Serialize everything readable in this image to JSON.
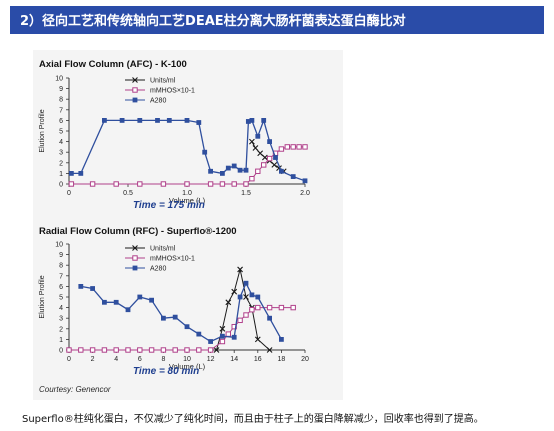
{
  "header": {
    "title": "2）径向工艺和传统轴向工艺DEAE柱分离大肠杆菌表达蛋白酶比对"
  },
  "figure": {
    "credit": "Courtesy: Genencor"
  },
  "caption": "Superflo®柱纯化蛋白，不仅减少了纯化时间，而且由于柱子上的蛋白降解减少，回收率也得到了提高。",
  "colors": {
    "header_bg": "#2a4ca8",
    "units": "#1a1a1a",
    "mmhos": "#b0408a",
    "a280": "#2f4f9e"
  },
  "chart_data": [
    {
      "type": "line",
      "title": "Axial Flow Column (AFC) - K-100",
      "xlabel": "Volume (L)",
      "ylabel": "Elution Profile",
      "xlim": [
        0,
        2.0
      ],
      "ylim": [
        0,
        10
      ],
      "xticks": [
        "0",
        "0.5",
        "1.0",
        "1.5",
        "2.0"
      ],
      "yticks": [
        "0",
        "1",
        "2",
        "3",
        "4",
        "5",
        "6",
        "7",
        "8",
        "9",
        "10"
      ],
      "time_label": "Time = 175 min",
      "legend": [
        "Units/ml",
        "mMHOS×10-1",
        "A280"
      ],
      "legend_position": "top",
      "series": [
        {
          "name": "Units/ml",
          "marker": "x",
          "x": [
            1.55,
            1.58,
            1.62,
            1.66,
            1.7,
            1.74,
            1.78,
            1.82
          ],
          "y": [
            4.0,
            3.4,
            2.9,
            2.5,
            2.2,
            1.8,
            1.5,
            1.2
          ]
        },
        {
          "name": "mMHOS×10-1",
          "marker": "square-open",
          "x": [
            0.02,
            0.2,
            0.4,
            0.6,
            0.8,
            1.0,
            1.2,
            1.3,
            1.4,
            1.5,
            1.55,
            1.6,
            1.65,
            1.7,
            1.75,
            1.8,
            1.85,
            1.9,
            1.95,
            2.0
          ],
          "y": [
            0,
            0,
            0,
            0,
            0,
            0,
            0,
            0,
            0,
            0,
            0.5,
            1.2,
            1.8,
            2.4,
            2.9,
            3.3,
            3.5,
            3.5,
            3.5,
            3.5
          ]
        },
        {
          "name": "A280",
          "marker": "square-filled",
          "x": [
            0.02,
            0.1,
            0.3,
            0.45,
            0.6,
            0.75,
            0.85,
            1.0,
            1.1,
            1.15,
            1.2,
            1.3,
            1.35,
            1.4,
            1.45,
            1.5,
            1.52,
            1.55,
            1.6,
            1.65,
            1.7,
            1.75,
            1.8,
            1.9,
            2.0
          ],
          "y": [
            1.0,
            1.0,
            6.0,
            6.0,
            6.0,
            6.0,
            6.0,
            6.0,
            5.8,
            3.0,
            1.2,
            1.0,
            1.5,
            1.7,
            1.3,
            1.3,
            5.9,
            6.0,
            4.5,
            6.0,
            4.0,
            2.5,
            1.2,
            0.7,
            0.3
          ]
        }
      ]
    },
    {
      "type": "line",
      "title": "Radial Flow Column (RFC) - Superflo®-1200",
      "xlabel": "Volume (L)",
      "ylabel": "Elution Profile",
      "xlim": [
        0,
        20
      ],
      "ylim": [
        0,
        10
      ],
      "xticks": [
        "0",
        "2",
        "4",
        "6",
        "8",
        "10",
        "12",
        "14",
        "16",
        "18",
        "20"
      ],
      "yticks": [
        "0",
        "1",
        "2",
        "3",
        "4",
        "5",
        "6",
        "7",
        "8",
        "9",
        "10"
      ],
      "time_label": "Time = 80 min",
      "legend": [
        "Units/ml",
        "mMHOS×10-1",
        "A280"
      ],
      "legend_position": "top",
      "series": [
        {
          "name": "Units/ml",
          "marker": "x",
          "x": [
            12.5,
            13.0,
            13.5,
            14.0,
            14.5,
            15.0,
            15.5,
            16.0,
            17.0
          ],
          "y": [
            0,
            2.0,
            4.5,
            5.5,
            7.6,
            5.0,
            4.0,
            1.0,
            0
          ]
        },
        {
          "name": "mMHOS×10-1",
          "marker": "square-open",
          "x": [
            0,
            1,
            2,
            3,
            4,
            5,
            6,
            7,
            8,
            9,
            10,
            11,
            12,
            13,
            13.5,
            14,
            14.5,
            15,
            15.5,
            16,
            17,
            18,
            19
          ],
          "y": [
            0,
            0,
            0,
            0,
            0,
            0,
            0,
            0,
            0,
            0,
            0,
            0,
            0,
            0.8,
            1.5,
            2.2,
            2.8,
            3.3,
            3.8,
            4.0,
            4.0,
            4.0,
            4.0
          ]
        },
        {
          "name": "A280",
          "marker": "square-filled",
          "x": [
            1,
            2,
            3,
            4,
            5,
            6,
            7,
            8,
            9,
            10,
            11,
            12,
            13,
            14,
            14.5,
            15,
            15.5,
            16,
            17,
            18
          ],
          "y": [
            6.0,
            5.8,
            4.5,
            4.5,
            3.8,
            5.0,
            4.7,
            3.0,
            3.1,
            2.2,
            1.5,
            0.8,
            1.3,
            1.2,
            5.0,
            6.3,
            5.2,
            5.0,
            3.0,
            1.0
          ]
        }
      ]
    }
  ]
}
